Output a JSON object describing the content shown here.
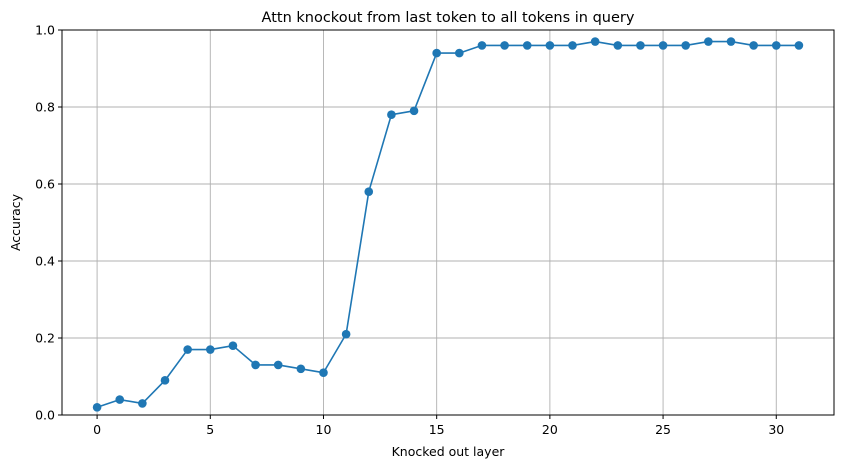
{
  "chart_data": {
    "type": "line",
    "title": "Attn knockout from last token to all tokens in query",
    "xlabel": "Knocked out layer",
    "ylabel": "Accuracy",
    "xlim": [
      -1.55,
      32.55
    ],
    "ylim": [
      0,
      1.0
    ],
    "xticks": [
      0,
      5,
      10,
      15,
      20,
      25,
      30
    ],
    "xtick_labels": [
      "0",
      "5",
      "10",
      "15",
      "20",
      "25",
      "30"
    ],
    "yticks": [
      0,
      0.2,
      0.4,
      0.6,
      0.8,
      1.0
    ],
    "ytick_labels": [
      "0.0",
      "0.2",
      "0.4",
      "0.6",
      "0.8",
      "1.0"
    ],
    "grid": true,
    "color": "#1f77b4",
    "marker": "circle",
    "x": [
      0,
      1,
      2,
      3,
      4,
      5,
      6,
      7,
      8,
      9,
      10,
      11,
      12,
      13,
      14,
      15,
      16,
      17,
      18,
      19,
      20,
      21,
      22,
      23,
      24,
      25,
      26,
      27,
      28,
      29,
      30,
      31
    ],
    "values": [
      0.02,
      0.04,
      0.03,
      0.09,
      0.17,
      0.17,
      0.18,
      0.13,
      0.13,
      0.12,
      0.11,
      0.21,
      0.58,
      0.78,
      0.79,
      0.94,
      0.94,
      0.96,
      0.96,
      0.96,
      0.96,
      0.96,
      0.97,
      0.96,
      0.96,
      0.96,
      0.96,
      0.97,
      0.97,
      0.96,
      0.96,
      0.96
    ]
  }
}
